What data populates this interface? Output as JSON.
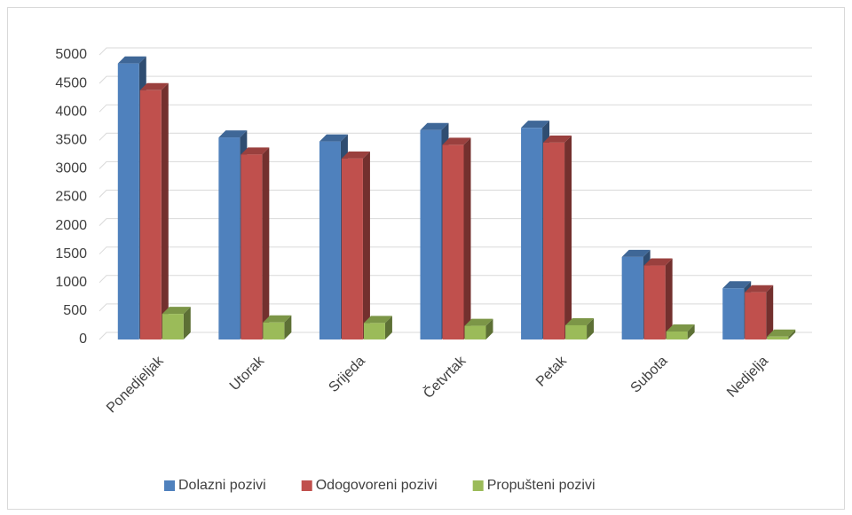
{
  "chart_data": {
    "type": "bar3d",
    "categories": [
      "Ponedjeljak",
      "Utorak",
      "Srijeda",
      "Četvrtak",
      "Petak",
      "Subota",
      "Nedjelja"
    ],
    "series": [
      {
        "name": "Dolazni pozivi",
        "color": "#4f81bd",
        "values": [
          4850,
          3550,
          3480,
          3680,
          3720,
          1450,
          900
        ]
      },
      {
        "name": "Odogovoreni pozivi",
        "color": "#c0504d",
        "values": [
          4380,
          3250,
          3180,
          3420,
          3460,
          1300,
          830
        ]
      },
      {
        "name": "Propušteni pozivi",
        "color": "#9bbb59",
        "values": [
          450,
          300,
          290,
          240,
          250,
          140,
          50
        ]
      }
    ],
    "ylim": [
      0,
      5000
    ],
    "yticks": [
      0,
      500,
      1000,
      1500,
      2000,
      2500,
      3000,
      3500,
      4000,
      4500,
      5000
    ],
    "grid": true,
    "legend": "bottom"
  }
}
